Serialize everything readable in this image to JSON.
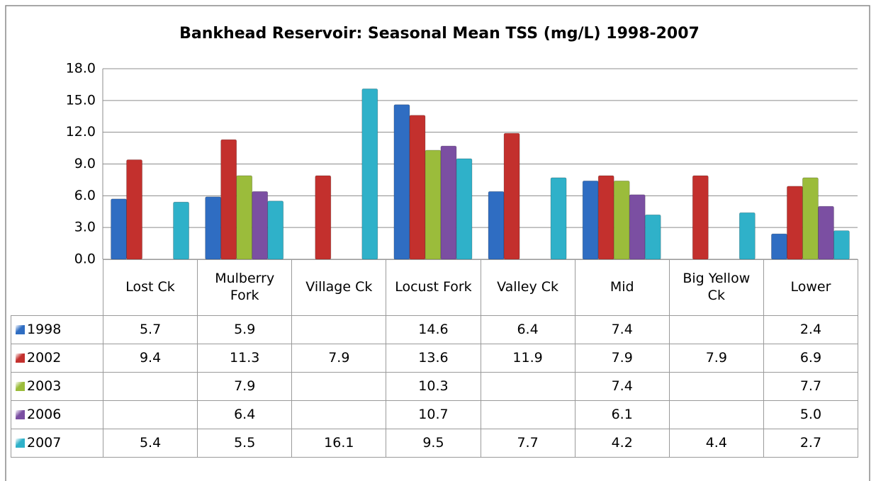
{
  "chart_data": {
    "type": "bar",
    "title": "Bankhead Reservoir: Seasonal Mean TSS (mg/L) 1998-2007",
    "categories": [
      "Lost Ck",
      "Mulberry Fork",
      "Village Ck",
      "Locust Fork",
      "Valley Ck",
      "Mid",
      "Big Yellow Ck",
      "Lower"
    ],
    "series": [
      {
        "name": "1998",
        "color": "#2f6dc2",
        "values": [
          5.7,
          5.9,
          null,
          14.6,
          6.4,
          7.4,
          null,
          2.4
        ],
        "value_labels": [
          "5.7",
          "5.9",
          null,
          "14.6",
          "6.4",
          "7.4",
          null,
          "2.4"
        ]
      },
      {
        "name": "2002",
        "color": "#c3302d",
        "values": [
          9.4,
          11.3,
          7.9,
          13.6,
          11.9,
          7.9,
          7.9,
          6.9
        ],
        "value_labels": [
          "9.4",
          "11.3",
          "7.9",
          "13.6",
          "11.9",
          "7.9",
          "7.9",
          "6.9"
        ]
      },
      {
        "name": "2003",
        "color": "#9bbc3b",
        "values": [
          null,
          7.9,
          null,
          10.3,
          null,
          7.4,
          null,
          7.7
        ],
        "value_labels": [
          null,
          "7.9",
          null,
          "10.3",
          null,
          "7.4",
          null,
          "7.7"
        ]
      },
      {
        "name": "2006",
        "color": "#7b4fa2",
        "values": [
          null,
          6.4,
          null,
          10.7,
          null,
          6.1,
          null,
          5.0
        ],
        "value_labels": [
          null,
          "6.4",
          null,
          "10.7",
          null,
          "6.1",
          null,
          "5.0"
        ]
      },
      {
        "name": "2007",
        "color": "#2fb1c9",
        "values": [
          5.4,
          5.5,
          16.1,
          9.5,
          7.7,
          4.2,
          4.4,
          2.7
        ],
        "value_labels": [
          "5.4",
          "5.5",
          "16.1",
          "9.5",
          "7.7",
          "4.2",
          "4.4",
          "2.7"
        ]
      }
    ],
    "ylim": [
      0,
      18
    ],
    "yticks": [
      {
        "value": 0,
        "label": "0.0"
      },
      {
        "value": 3,
        "label": "3.0"
      },
      {
        "value": 6,
        "label": "6.0"
      },
      {
        "value": 9,
        "label": "9.0"
      },
      {
        "value": 12,
        "label": "12.0"
      },
      {
        "value": 15,
        "label": "15.0"
      },
      {
        "value": 18,
        "label": "18.0"
      }
    ],
    "grid": true
  }
}
